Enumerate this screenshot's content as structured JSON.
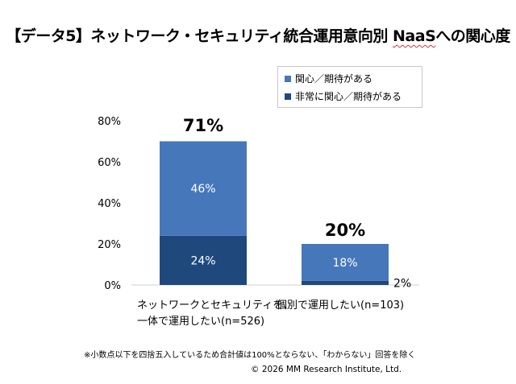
{
  "title_main": "【データ5】ネットワーク・セキュリティ統合運用意向別 ",
  "title_underlined": "NaaS",
  "title_tail": "への関心度",
  "chart_data": {
    "type": "bar",
    "stacked": true,
    "categories": [
      [
        "ネットワークとセキュリティを、",
        "一体で運用したい(n=526)"
      ],
      [
        "個別で運用したい(n=103)"
      ]
    ],
    "series": [
      {
        "name": "非常に関心／期待がある",
        "values": [
          24,
          2
        ],
        "color": "#1f497d"
      },
      {
        "name": "関心／期待がある",
        "values": [
          46,
          18
        ],
        "color": "#4677bb"
      }
    ],
    "data_labels": [
      [
        "24%",
        "46%"
      ],
      [
        "2%",
        "18%"
      ]
    ],
    "totals": [
      71,
      20
    ],
    "total_labels": [
      "71%",
      "20%"
    ],
    "y_ticks": [
      "0%",
      "20%",
      "40%",
      "60%",
      "80%"
    ],
    "ylim": [
      0,
      80
    ],
    "legend_position": "top-right",
    "grid": false
  },
  "legend": [
    {
      "label": "関心／期待がある",
      "color": "#4677bb"
    },
    {
      "label": "非常に関心／期待がある",
      "color": "#1f497d"
    }
  ],
  "footnote": "※小数点以下を四捨五入しているため合計値は100%とならない、「わからない」回答を除く",
  "copyright": "© 2026 MM Research Institute, Ltd."
}
